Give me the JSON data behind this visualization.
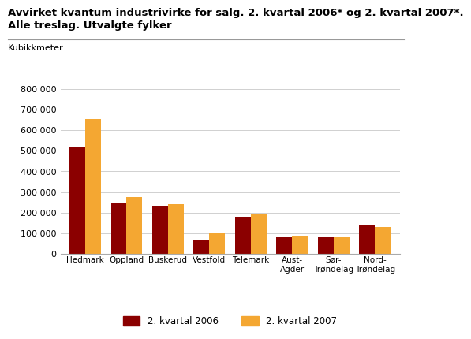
{
  "title_line1": "Avvirket kvantum industrivirke for salg. 2. kvartal 2006* og 2. kvartal 2007*.",
  "title_line2": "Alle treslag. Utvalgte fylker",
  "ylabel": "Kubikkmeter",
  "categories": [
    "Hedmark",
    "Oppland",
    "Buskerud",
    "Vestfold",
    "Telemark",
    "Aust-\nAgder",
    "Sør-\nTrøndelag",
    "Nord-\nTrøndelag"
  ],
  "values_2006": [
    515000,
    245000,
    232000,
    70000,
    180000,
    80000,
    83000,
    143000
  ],
  "values_2007": [
    655000,
    277000,
    240000,
    104000,
    195000,
    88000,
    82000,
    130000
  ],
  "color_2006": "#8B0000",
  "color_2007": "#F4A732",
  "legend_2006": "2. kvartal 2006",
  "legend_2007": "2. kvartal 2007",
  "ylim": [
    0,
    800000
  ],
  "yticks": [
    0,
    100000,
    200000,
    300000,
    400000,
    500000,
    600000,
    700000,
    800000
  ],
  "ytick_labels": [
    "0",
    "100 000",
    "200 000",
    "300 000",
    "400 000",
    "500 000",
    "600 000",
    "700 000",
    "800 000"
  ],
  "background_color": "#ffffff",
  "grid_color": "#d0d0d0",
  "bar_width": 0.38,
  "title_fontsize": 9.5,
  "ylabel_fontsize": 8,
  "tick_fontsize": 8,
  "legend_fontsize": 8.5
}
